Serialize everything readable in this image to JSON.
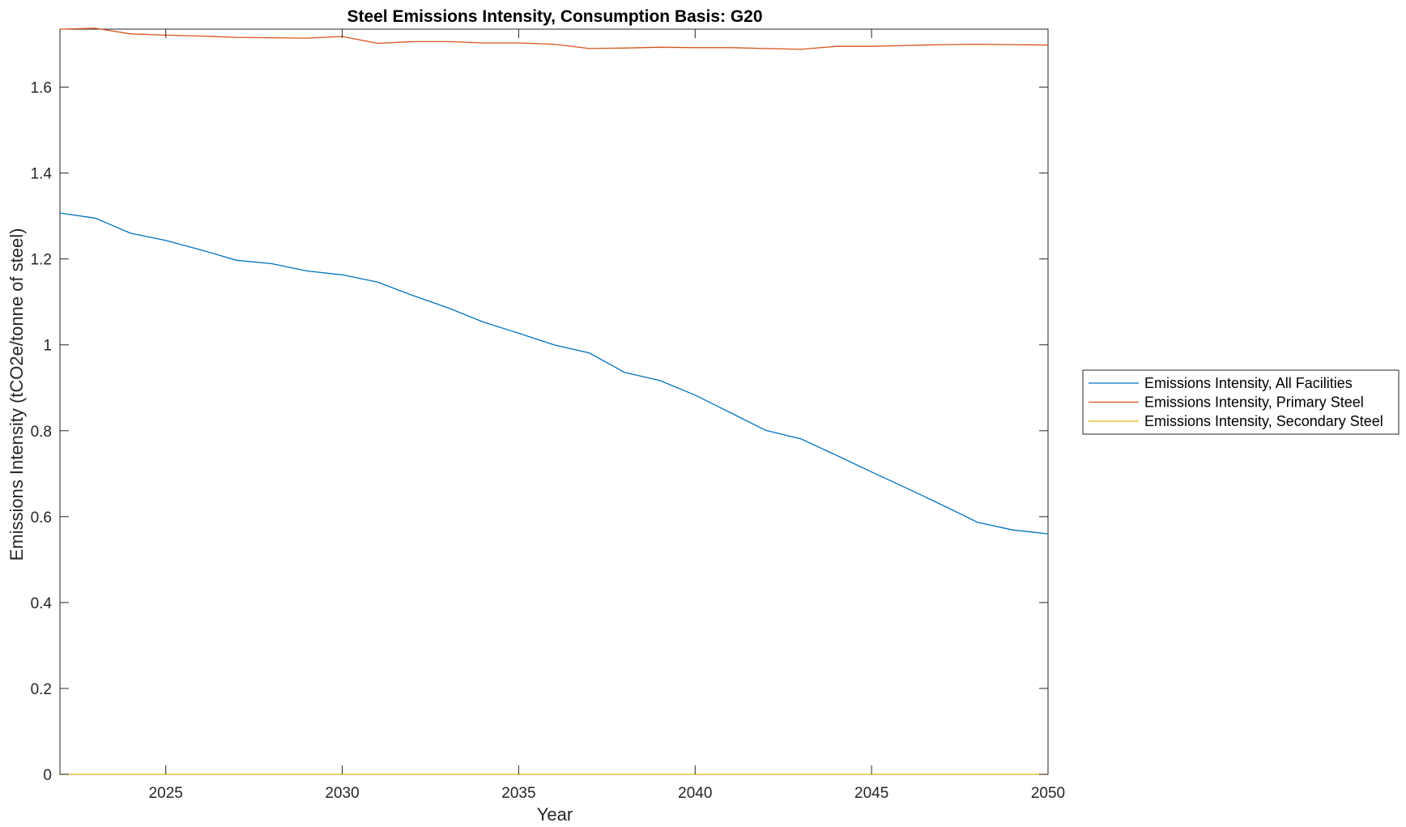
{
  "chart_data": {
    "type": "line",
    "title": "Steel Emissions Intensity, Consumption Basis: G20",
    "xlabel": "Year",
    "ylabel": "Emissions Intensity (tCO2e/tonne of steel)",
    "xlim": [
      2022,
      2050
    ],
    "ylim": [
      0,
      1.735
    ],
    "xticks": [
      2025,
      2030,
      2035,
      2040,
      2045,
      2050
    ],
    "yticks": [
      0,
      0.2,
      0.4,
      0.6,
      0.8,
      1,
      1.2,
      1.4,
      1.6
    ],
    "ytick_labels": [
      "0",
      "0.2",
      "0.4",
      "0.6",
      "0.8",
      "1",
      "1.2",
      "1.4",
      "1.6"
    ],
    "grid": false,
    "legend_position": "outside-right",
    "x": [
      2022,
      2023,
      2024,
      2025,
      2026,
      2027,
      2028,
      2029,
      2030,
      2031,
      2032,
      2033,
      2034,
      2035,
      2036,
      2037,
      2038,
      2039,
      2040,
      2041,
      2042,
      2043,
      2044,
      2045,
      2046,
      2047,
      2048,
      2049,
      2050
    ],
    "series": [
      {
        "name": "Emissions Intensity, All Facilities",
        "color": "#0072BD",
        "values": [
          1.307,
          1.295,
          1.26,
          1.243,
          1.221,
          1.197,
          1.189,
          1.172,
          1.163,
          1.146,
          1.115,
          1.086,
          1.053,
          1.027,
          1.0,
          0.981,
          0.936,
          0.917,
          0.883,
          0.842,
          0.801,
          0.781,
          0.743,
          0.704,
          0.666,
          0.627,
          0.587,
          0.569,
          0.56
        ]
      },
      {
        "name": "Emissions Intensity, Primary Steel",
        "color": "#D95319",
        "values": [
          1.735,
          1.737,
          1.724,
          1.721,
          1.719,
          1.716,
          1.715,
          1.714,
          1.718,
          1.702,
          1.706,
          1.706,
          1.703,
          1.703,
          1.7,
          1.69,
          1.691,
          1.693,
          1.692,
          1.692,
          1.69,
          1.688,
          1.695,
          1.695,
          1.697,
          1.699,
          1.7,
          1.699,
          1.698
        ]
      },
      {
        "name": "Emissions Intensity, Secondary Steel",
        "color": "#EDB120",
        "values": [
          0,
          0,
          0,
          0,
          0,
          0,
          0,
          0,
          0,
          0,
          0,
          0,
          0,
          0,
          0,
          0,
          0,
          0,
          0,
          0,
          0,
          0,
          0,
          0,
          0,
          0,
          0,
          0,
          0
        ]
      }
    ]
  }
}
